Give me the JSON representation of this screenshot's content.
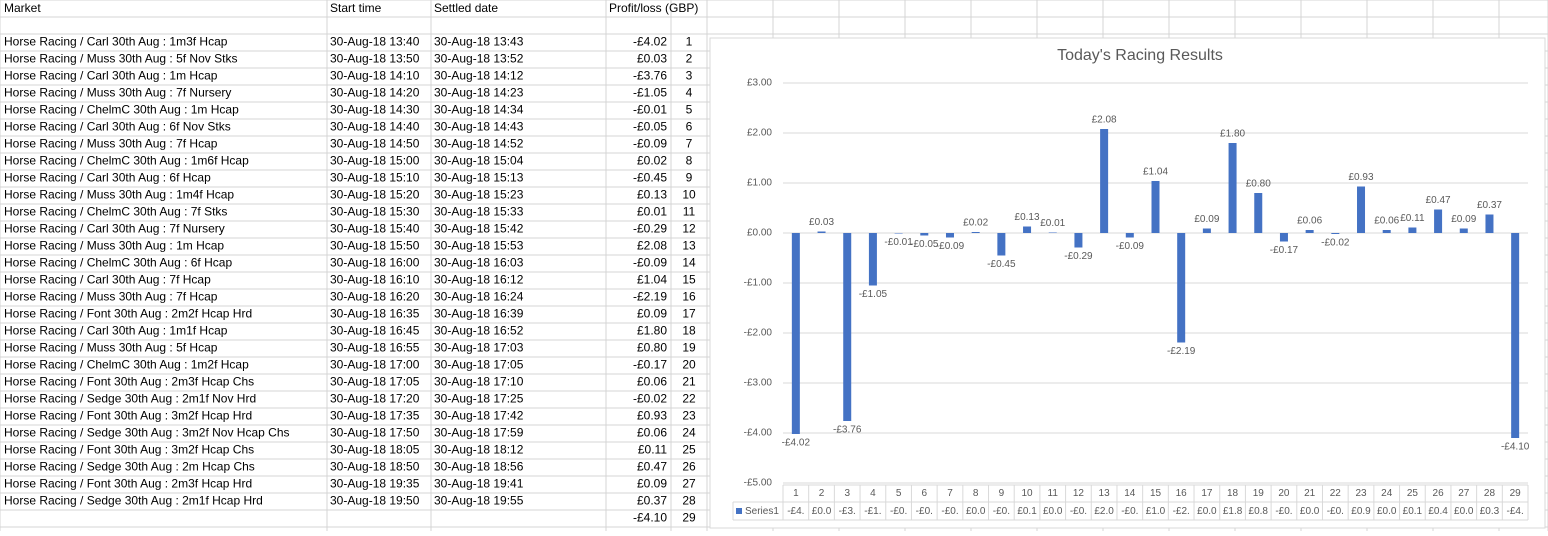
{
  "table": {
    "header": [
      "Market",
      "Start time",
      "Settled date",
      "Profit/loss (GBP)"
    ],
    "rows": [
      [
        "Horse Racing / Carl  30th Aug : 1m3f Hcap",
        "30-Aug-18 13:40",
        "30-Aug-18 13:43",
        "-£4.02",
        1
      ],
      [
        "Horse Racing / Muss  30th Aug : 5f Nov Stks",
        "30-Aug-18 13:50",
        "30-Aug-18 13:52",
        "£0.03",
        2
      ],
      [
        "Horse Racing / Carl  30th Aug : 1m Hcap",
        "30-Aug-18 14:10",
        "30-Aug-18 14:12",
        "-£3.76",
        3
      ],
      [
        "Horse Racing / Muss  30th Aug : 7f Nursery",
        "30-Aug-18 14:20",
        "30-Aug-18 14:23",
        "-£1.05",
        4
      ],
      [
        "Horse Racing / ChelmC  30th Aug : 1m Hcap",
        "30-Aug-18 14:30",
        "30-Aug-18 14:34",
        "-£0.01",
        5
      ],
      [
        "Horse Racing / Carl  30th Aug : 6f Nov Stks",
        "30-Aug-18 14:40",
        "30-Aug-18 14:43",
        "-£0.05",
        6
      ],
      [
        "Horse Racing / Muss  30th Aug : 7f Hcap",
        "30-Aug-18 14:50",
        "30-Aug-18 14:52",
        "-£0.09",
        7
      ],
      [
        "Horse Racing / ChelmC  30th Aug : 1m6f Hcap",
        "30-Aug-18 15:00",
        "30-Aug-18 15:04",
        "£0.02",
        8
      ],
      [
        "Horse Racing / Carl  30th Aug : 6f Hcap",
        "30-Aug-18 15:10",
        "30-Aug-18 15:13",
        "-£0.45",
        9
      ],
      [
        "Horse Racing / Muss  30th Aug : 1m4f Hcap",
        "30-Aug-18 15:20",
        "30-Aug-18 15:23",
        "£0.13",
        10
      ],
      [
        "Horse Racing / ChelmC  30th Aug : 7f Stks",
        "30-Aug-18 15:30",
        "30-Aug-18 15:33",
        "£0.01",
        11
      ],
      [
        "Horse Racing / Carl  30th Aug : 7f Nursery",
        "30-Aug-18 15:40",
        "30-Aug-18 15:42",
        "-£0.29",
        12
      ],
      [
        "Horse Racing / Muss  30th Aug : 1m Hcap",
        "30-Aug-18 15:50",
        "30-Aug-18 15:53",
        "£2.08",
        13
      ],
      [
        "Horse Racing / ChelmC  30th Aug : 6f Hcap",
        "30-Aug-18 16:00",
        "30-Aug-18 16:03",
        "-£0.09",
        14
      ],
      [
        "Horse Racing / Carl  30th Aug : 7f Hcap",
        "30-Aug-18 16:10",
        "30-Aug-18 16:12",
        "£1.04",
        15
      ],
      [
        "Horse Racing / Muss  30th Aug : 7f Hcap",
        "30-Aug-18 16:20",
        "30-Aug-18 16:24",
        "-£2.19",
        16
      ],
      [
        "Horse Racing / Font  30th Aug : 2m2f Hcap Hrd",
        "30-Aug-18 16:35",
        "30-Aug-18 16:39",
        "£0.09",
        17
      ],
      [
        "Horse Racing / Carl  30th Aug : 1m1f Hcap",
        "30-Aug-18 16:45",
        "30-Aug-18 16:52",
        "£1.80",
        18
      ],
      [
        "Horse Racing / Muss  30th Aug : 5f Hcap",
        "30-Aug-18 16:55",
        "30-Aug-18 17:03",
        "£0.80",
        19
      ],
      [
        "Horse Racing / ChelmC  30th Aug : 1m2f Hcap",
        "30-Aug-18 17:00",
        "30-Aug-18 17:05",
        "-£0.17",
        20
      ],
      [
        "Horse Racing / Font  30th Aug : 2m3f Hcap Chs",
        "30-Aug-18 17:05",
        "30-Aug-18 17:10",
        "£0.06",
        21
      ],
      [
        "Horse Racing / Sedge  30th Aug : 2m1f Nov Hrd",
        "30-Aug-18 17:20",
        "30-Aug-18 17:25",
        "-£0.02",
        22
      ],
      [
        "Horse Racing / Font  30th Aug : 3m2f Hcap Hrd",
        "30-Aug-18 17:35",
        "30-Aug-18 17:42",
        "£0.93",
        23
      ],
      [
        "Horse Racing / Sedge  30th Aug : 3m2f Nov Hcap Chs",
        "30-Aug-18 17:50",
        "30-Aug-18 17:59",
        "£0.06",
        24
      ],
      [
        "Horse Racing / Font  30th Aug : 3m2f Hcap Chs",
        "30-Aug-18 18:05",
        "30-Aug-18 18:12",
        "£0.11",
        25
      ],
      [
        "Horse Racing / Sedge  30th Aug : 2m Hcap Chs",
        "30-Aug-18 18:50",
        "30-Aug-18 18:56",
        "£0.47",
        26
      ],
      [
        "Horse Racing / Font  30th Aug : 2m3f Hcap Hrd",
        "30-Aug-18 19:35",
        "30-Aug-18 19:41",
        "£0.09",
        27
      ],
      [
        "Horse Racing / Sedge  30th Aug : 2m1f Hcap Hrd",
        "30-Aug-18 19:50",
        "30-Aug-18 19:55",
        "£0.37",
        28
      ]
    ],
    "last_row": [
      "-£4.10",
      29
    ]
  },
  "chart_data": {
    "type": "bar",
    "title": "Today's Racing Results",
    "categories": [
      "1",
      "2",
      "3",
      "4",
      "5",
      "6",
      "7",
      "8",
      "9",
      "10",
      "11",
      "12",
      "13",
      "14",
      "15",
      "16",
      "17",
      "18",
      "19",
      "20",
      "21",
      "22",
      "23",
      "24",
      "25",
      "26",
      "27",
      "28",
      "29"
    ],
    "series": [
      {
        "name": "Series1",
        "color": "#4472c4",
        "values": [
          -4.02,
          0.03,
          -3.76,
          -1.05,
          -0.01,
          -0.05,
          -0.09,
          0.02,
          -0.45,
          0.13,
          0.01,
          -0.29,
          2.08,
          -0.09,
          1.04,
          -2.19,
          0.09,
          1.8,
          0.8,
          -0.17,
          0.06,
          -0.02,
          0.93,
          0.06,
          0.11,
          0.47,
          0.09,
          0.37,
          -4.1
        ],
        "value_labels": [
          "-£4.02",
          "£0.03",
          "-£3.76",
          "-£1.05",
          "-£0.01",
          "-£0.05",
          "-£0.09",
          "£0.02",
          "-£0.45",
          "£0.13",
          "£0.01",
          "-£0.29",
          "£2.08",
          "-£0.09",
          "£1.04",
          "-£2.19",
          "£0.09",
          "£1.80",
          "£0.80",
          "-£0.17",
          "£0.06",
          "-£0.02",
          "£0.93",
          "£0.06",
          "£0.11",
          "£0.47",
          "£0.09",
          "£0.37",
          "-£4.10"
        ],
        "table_cells": [
          "-£4.",
          "£0.0",
          "-£3.",
          "-£1.",
          "-£0.",
          "-£0.",
          "-£0.",
          "£0.0",
          "-£0.",
          "£0.1",
          "£0.0",
          "-£0.",
          "£2.0",
          "-£0.",
          "£1.0",
          "-£2.",
          "£0.0",
          "£1.8",
          "£0.8",
          "-£0.",
          "£0.0",
          "-£0.",
          "£0.9",
          "£0.0",
          "£0.1",
          "£0.4",
          "£0.0",
          "£0.3",
          "-£4."
        ]
      }
    ],
    "ylim": [
      -5,
      3
    ],
    "yticks": [
      {
        "value": -5,
        "label": "-£5.00"
      },
      {
        "value": -4,
        "label": "-£4.00"
      },
      {
        "value": -3,
        "label": "-£3.00"
      },
      {
        "value": -2,
        "label": "-£2.00"
      },
      {
        "value": -1,
        "label": "-£1.00"
      },
      {
        "value": 0,
        "label": "£0.00"
      },
      {
        "value": 1,
        "label": "£1.00"
      },
      {
        "value": 2,
        "label": "£2.00"
      },
      {
        "value": 3,
        "label": "£3.00"
      }
    ],
    "grid": true
  }
}
